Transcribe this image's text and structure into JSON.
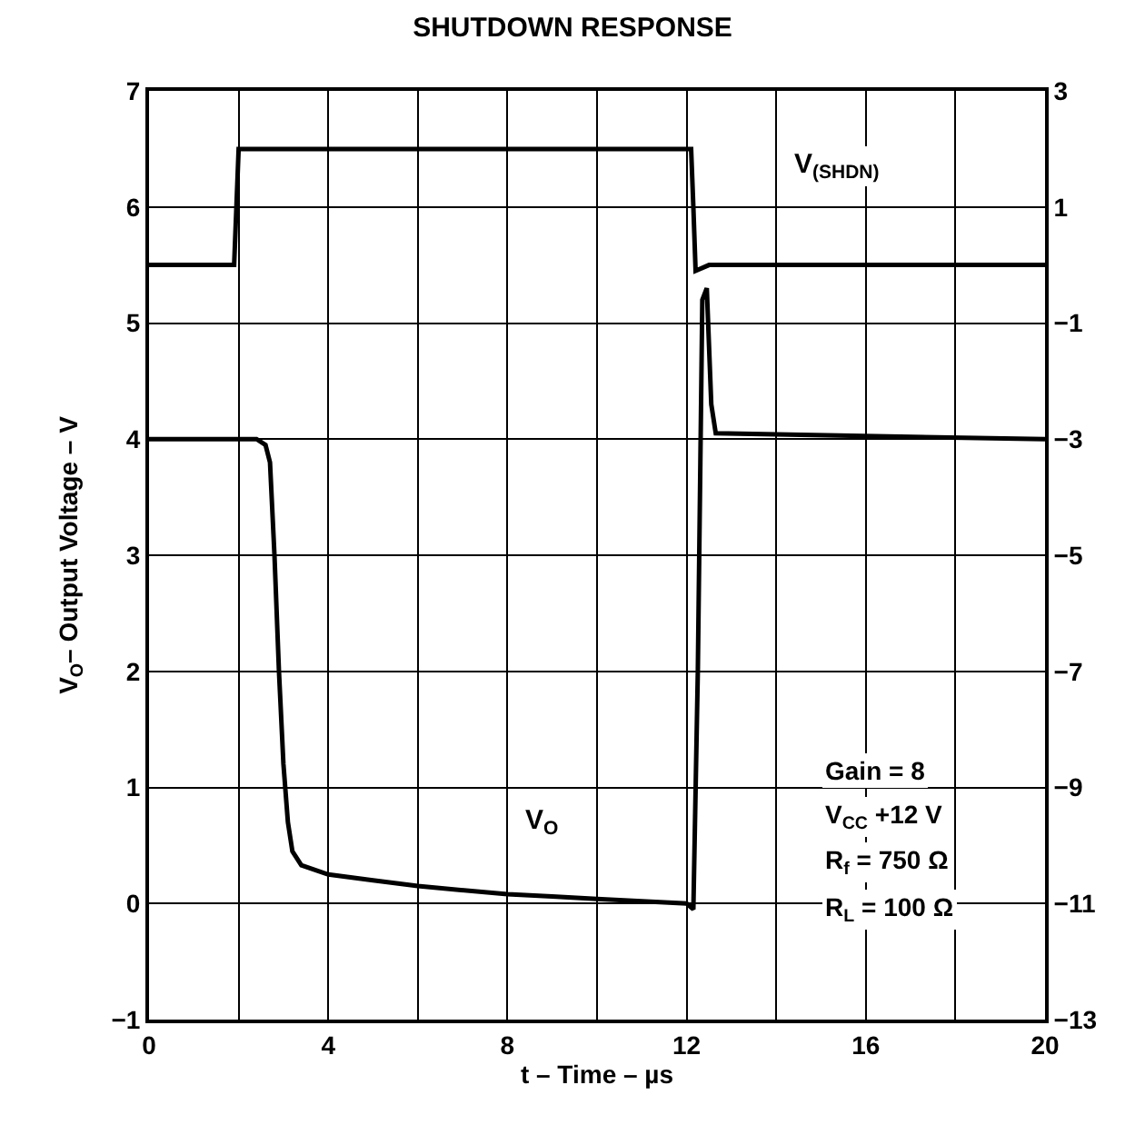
{
  "chart_data": {
    "type": "line",
    "title": "SHUTDOWN RESPONSE",
    "xlabel": "t – Time – µs",
    "ylabel": "V$_{O}$– Output Voltage – V",
    "xlim": [
      0,
      20
    ],
    "xticks": [
      0,
      {
        "value": 2,
        "label": null
      },
      4,
      {
        "value": 6,
        "label": null
      },
      8,
      {
        "value": 10,
        "label": null
      },
      12,
      {
        "value": 14,
        "label": null
      },
      16,
      {
        "value": 18,
        "label": null
      },
      20
    ],
    "ylim": [
      -1,
      7
    ],
    "yticks": [
      -1,
      0,
      1,
      2,
      3,
      4,
      5,
      6,
      7
    ],
    "y2lim": [
      -13,
      3
    ],
    "y2ticks": [
      -13,
      -11,
      -9,
      -7,
      -5,
      -3,
      -1,
      1,
      3
    ],
    "grid": true,
    "legend": false,
    "line_style": "solid",
    "marker": "none",
    "series": [
      {
        "name": "V$_{(SHDN)}$",
        "color": "#000000",
        "axis": "y2",
        "x": [
          0,
          1.9,
          1.95,
          2.0,
          12.1,
          12.15,
          12.2,
          12.5,
          20
        ],
        "values": [
          0,
          0,
          1.0,
          2,
          2,
          1.0,
          -0.1,
          0,
          0
        ]
      },
      {
        "name": "V$_{O}$",
        "color": "#000000",
        "x": [
          0,
          2.4,
          2.6,
          2.7,
          2.8,
          2.9,
          3.0,
          3.1,
          3.2,
          3.4,
          4,
          5,
          6,
          8,
          9,
          10,
          11,
          12.0,
          12.15,
          12.25,
          12.35,
          12.45,
          12.55,
          12.65,
          20
        ],
        "values": [
          4.0,
          4.0,
          3.95,
          3.8,
          3.0,
          2.0,
          1.2,
          0.7,
          0.45,
          0.33,
          0.25,
          0.2,
          0.15,
          0.08,
          0.06,
          0.04,
          0.02,
          0.0,
          -0.05,
          2.0,
          5.2,
          5.3,
          4.3,
          4.05,
          4.0
        ]
      }
    ],
    "annotations": [
      "Gain = 8",
      "V$_{CC}$ +12 V",
      "R$_{f}$ = 750 Ω",
      "R$_{L}$ = 100 Ω"
    ]
  }
}
